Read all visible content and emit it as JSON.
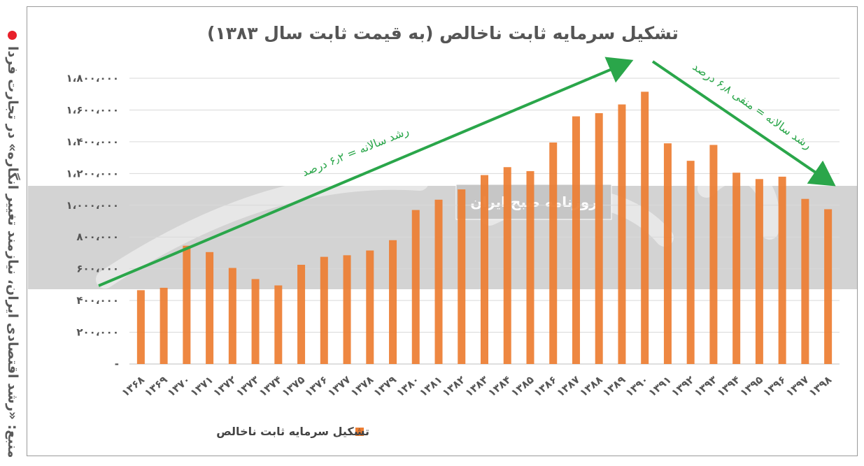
{
  "source": {
    "text": "منبع: «رشد اقتصادی ایران، نیازمند تغییر انگاره» در تجارت فردا"
  },
  "watermark": {
    "text": "روزنامه صبح ایران"
  },
  "chart_data": {
    "type": "bar",
    "title": "تشکیل سرمایه ثابت ناخالص (به قیمت ثابت سال ۱۳۸۳)",
    "categories": [
      "۱۳۶۸",
      "۱۳۶۹",
      "۱۳۷۰",
      "۱۳۷۱",
      "۱۳۷۲",
      "۱۳۷۳",
      "۱۳۷۴",
      "۱۳۷۵",
      "۱۳۷۶",
      "۱۳۷۷",
      "۱۳۷۸",
      "۱۳۷۹",
      "۱۳۸۰",
      "۱۳۸۱",
      "۱۳۸۲",
      "۱۳۸۳",
      "۱۳۸۴",
      "۱۳۸۵",
      "۱۳۸۶",
      "۱۳۸۷",
      "۱۳۸۸",
      "۱۳۸۹",
      "۱۳۹۰",
      "۱۳۹۱",
      "۱۳۹۲",
      "۱۳۹۳",
      "۱۳۹۴",
      "۱۳۹۵",
      "۱۳۹۶",
      "۱۳۹۷",
      "۱۳۹۸"
    ],
    "series": [
      {
        "name": "تشکیل سرمایه ثابت ناخالص",
        "color": "#ed7d31",
        "values": [
          465000,
          480000,
          745000,
          705000,
          605000,
          535000,
          495000,
          625000,
          675000,
          685000,
          715000,
          780000,
          970000,
          1035000,
          1100000,
          1190000,
          1240000,
          1215000,
          1395000,
          1560000,
          1580000,
          1635000,
          1715000,
          1390000,
          1280000,
          1380000,
          1205000,
          1165000,
          1180000,
          1040000,
          975000
        ]
      }
    ],
    "y_ticks": [
      "۱،۸۰۰،۰۰۰",
      "۱،۶۰۰،۰۰۰",
      "۱،۴۰۰،۰۰۰",
      "۱،۲۰۰،۰۰۰",
      "۱،۰۰۰،۰۰۰",
      "۸۰۰،۰۰۰",
      "۶۰۰،۰۰۰",
      "۴۰۰،۰۰۰",
      "۲۰۰،۰۰۰",
      "-"
    ],
    "ylim": [
      0,
      1800000
    ],
    "grid": true,
    "legend_position": "bottom-center",
    "annotations": [
      {
        "text": "رشد سالانه = ۶٫۲ درصد",
        "trend": "up",
        "color": "#2aa64a"
      },
      {
        "text": "رشد سالانه = منفی ۶٫۸ درصد",
        "trend": "down",
        "color": "#2aa64a"
      }
    ]
  }
}
